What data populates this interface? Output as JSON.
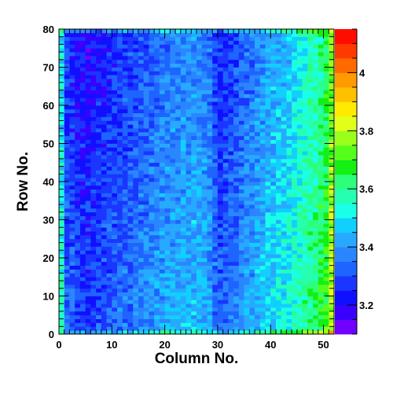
{
  "chart_data": {
    "type": "heatmap",
    "title": "",
    "xlabel": "Column No.",
    "ylabel": "Row No.",
    "x_range": [
      0,
      52
    ],
    "y_range": [
      0,
      80
    ],
    "n_columns": 52,
    "n_rows": 80,
    "x_ticks": [
      0,
      10,
      20,
      30,
      40,
      50
    ],
    "y_ticks": [
      0,
      10,
      20,
      30,
      40,
      50,
      60,
      70,
      80
    ],
    "x_tick_labels": [
      "0",
      "10",
      "20",
      "30",
      "40",
      "50"
    ],
    "y_tick_labels": [
      "0",
      "10",
      "20",
      "30",
      "40",
      "50",
      "60",
      "70",
      "80"
    ],
    "z_range": [
      3.1,
      4.15
    ],
    "colorbar_ticks": [
      3.2,
      3.4,
      3.6,
      3.8,
      4.0
    ],
    "colorbar_tick_labels": [
      "3.2",
      "3.4",
      "3.6",
      "3.8",
      "4"
    ],
    "colorbar_colors": [
      "#7000ff",
      "#3a00ff",
      "#1010ff",
      "#1a36ff",
      "#1e64ff",
      "#2a86ff",
      "#27a9ff",
      "#11cfff",
      "#1affe8",
      "#25ffb2",
      "#2cff7a",
      "#14ef14",
      "#55ff1a",
      "#9aff1a",
      "#e2ff1a",
      "#ffea00",
      "#ffc000",
      "#ff9a00",
      "#ff6a00",
      "#ff3a00",
      "#ff0c00"
    ],
    "column_profile": [
      3.52,
      3.3,
      3.28,
      3.26,
      3.25,
      3.24,
      3.25,
      3.26,
      3.27,
      3.28,
      3.29,
      3.3,
      3.31,
      3.32,
      3.33,
      3.34,
      3.35,
      3.36,
      3.37,
      3.38,
      3.39,
      3.4,
      3.4,
      3.41,
      3.41,
      3.42,
      3.41,
      3.4,
      3.38,
      3.32,
      3.28,
      3.3,
      3.32,
      3.33,
      3.35,
      3.37,
      3.39,
      3.41,
      3.43,
      3.45,
      3.46,
      3.47,
      3.48,
      3.5,
      3.52,
      3.54,
      3.56,
      3.58,
      3.6,
      3.63,
      3.66,
      3.72
    ],
    "row_gradient": -0.08
  }
}
